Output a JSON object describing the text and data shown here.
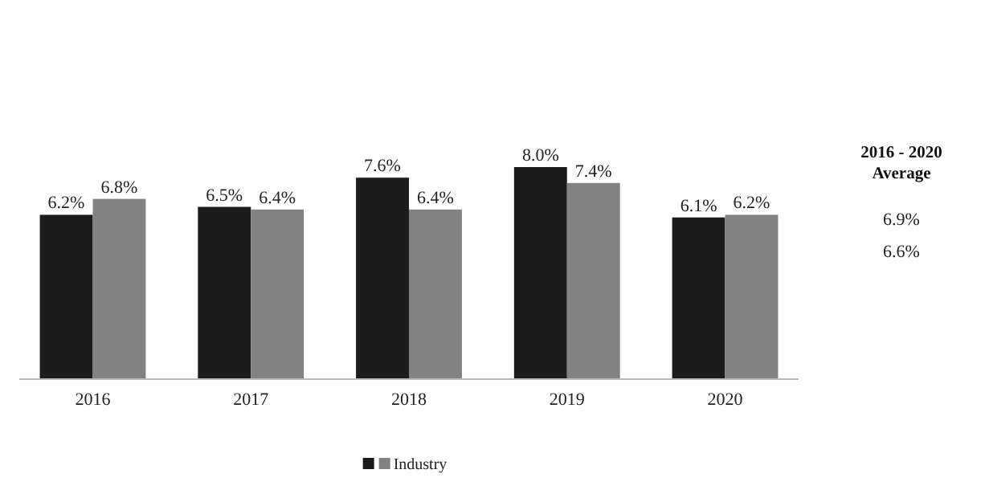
{
  "chart_data": {
    "type": "bar",
    "categories": [
      "2016",
      "2017",
      "2018",
      "2019",
      "2020"
    ],
    "series": [
      {
        "color": "#1c1c1c",
        "values": [
          6.2,
          6.5,
          7.6,
          8.0,
          6.1
        ],
        "value_labels": [
          "6.2%",
          "6.5%",
          "7.6%",
          "8.0%",
          "6.1%"
        ]
      },
      {
        "name": "Industry",
        "color": "#828282",
        "values": [
          6.8,
          6.4,
          6.4,
          7.4,
          6.2
        ],
        "value_labels": [
          "6.8%",
          "6.4%",
          "6.4%",
          "7.4%",
          "6.2%"
        ]
      }
    ],
    "legend": "bottom",
    "annotations": [
      "2016 - 2020 Average",
      "6.9%",
      "6.6%"
    ]
  }
}
